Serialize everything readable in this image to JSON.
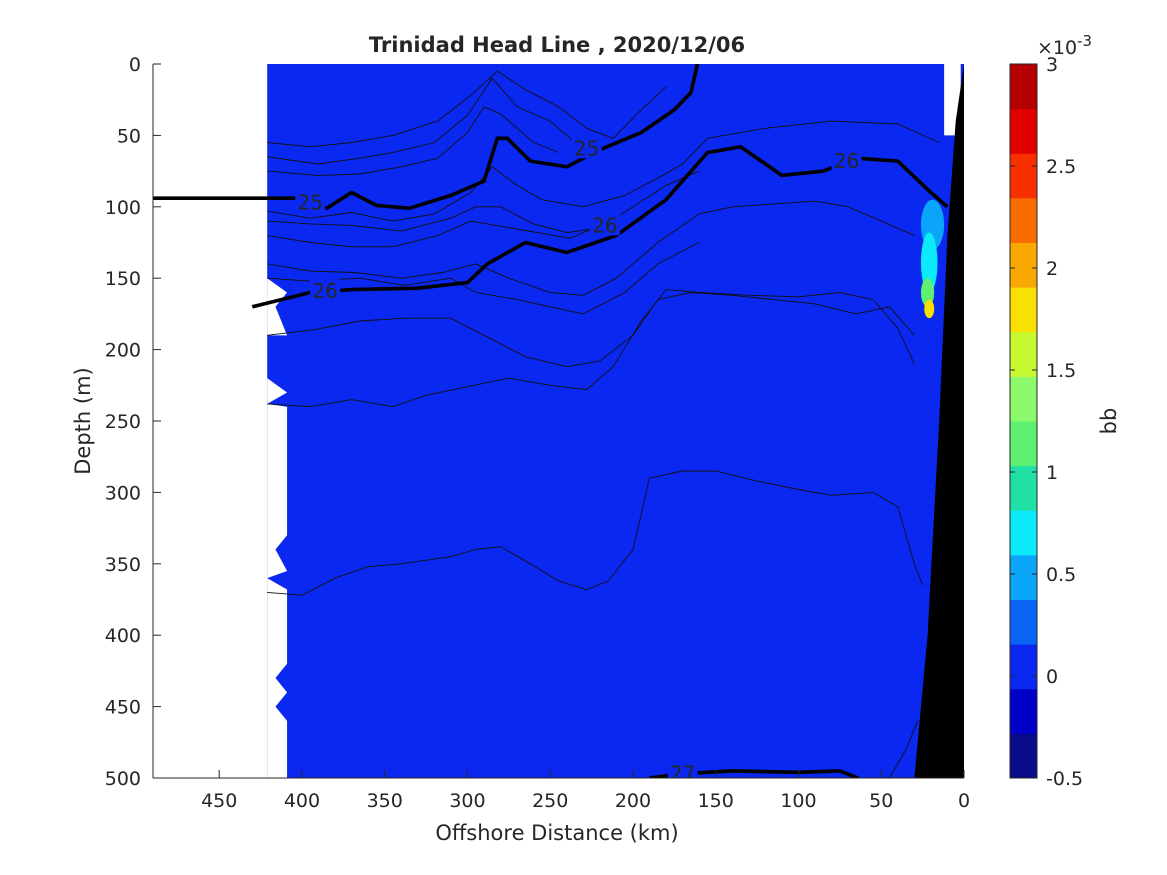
{
  "chart_data": {
    "type": "heatmap",
    "title": "Trinidad Head Line , 2020/12/06",
    "xlabel": "Offshore Distance (km)",
    "ylabel": "Depth (m)",
    "xlim": [
      490,
      0
    ],
    "ylim": [
      0,
      500
    ],
    "x_reversed": true,
    "y_reversed": true,
    "xticks": [
      "450",
      "400",
      "350",
      "300",
      "250",
      "200",
      "150",
      "100",
      "50",
      "0"
    ],
    "yticks": [
      "0",
      "50",
      "100",
      "150",
      "200",
      "250",
      "300",
      "350",
      "400",
      "450",
      "500"
    ],
    "colorbar": {
      "label": "bb",
      "exponent": "×10",
      "exponent_power": "-3",
      "range": [
        -0.5,
        3
      ],
      "tick_values": [
        -0.5,
        0,
        0.5,
        1,
        1.5,
        2,
        2.5,
        3
      ],
      "tick_labels": [
        "-0.5",
        "0",
        "0.5",
        "1",
        "1.5",
        "2",
        "2.5",
        "3"
      ],
      "colors": [
        "#0a0a8c",
        "#0000c8",
        "#0a28f0",
        "#0a64f5",
        "#0aa4f8",
        "#0aeaf8",
        "#20e0a8",
        "#5ef070",
        "#8cf86c",
        "#c8f830",
        "#f8e000",
        "#f8a800",
        "#f86c00",
        "#f83000",
        "#e00000",
        "#b40000"
      ]
    },
    "background_level": 0.1,
    "data_extent_x_km": [
      421,
      0
    ],
    "isopycnal_labels": [
      {
        "label": "25",
        "x": 395,
        "y": 97
      },
      {
        "label": "25",
        "x": 228,
        "y": 59
      },
      {
        "label": "26",
        "x": 386,
        "y": 159
      },
      {
        "label": "26",
        "x": 217,
        "y": 113
      },
      {
        "label": "26",
        "x": 71,
        "y": 68
      },
      {
        "label": "27",
        "x": 170,
        "y": 497
      }
    ],
    "bold_contours": [
      {
        "sigma": "25",
        "points": [
          [
            490,
            94
          ],
          [
            402,
            94
          ],
          [
            385,
            101
          ],
          [
            370,
            90
          ],
          [
            355,
            99
          ],
          [
            335,
            101
          ],
          [
            310,
            92
          ],
          [
            290,
            82
          ],
          [
            282,
            52
          ],
          [
            276,
            52
          ],
          [
            262,
            68
          ],
          [
            240,
            72
          ],
          [
            220,
            60
          ],
          [
            195,
            48
          ],
          [
            175,
            32
          ],
          [
            165,
            20
          ],
          [
            161,
            0
          ]
        ]
      },
      {
        "sigma": "26",
        "points": [
          [
            430,
            170
          ],
          [
            395,
            160
          ],
          [
            370,
            158
          ],
          [
            330,
            157
          ],
          [
            300,
            153
          ],
          [
            288,
            140
          ],
          [
            265,
            125
          ],
          [
            240,
            132
          ],
          [
            210,
            120
          ],
          [
            180,
            95
          ],
          [
            155,
            62
          ],
          [
            135,
            58
          ],
          [
            110,
            78
          ],
          [
            85,
            75
          ],
          [
            65,
            66
          ],
          [
            40,
            68
          ],
          [
            20,
            90
          ],
          [
            10,
            100
          ]
        ]
      },
      {
        "sigma": "27",
        "points": [
          [
            190,
            500
          ],
          [
            170,
            497
          ],
          [
            140,
            495
          ],
          [
            100,
            496
          ],
          [
            75,
            495
          ],
          [
            64,
            500
          ]
        ]
      }
    ],
    "thin_contours": [
      [
        [
          421,
          55
        ],
        [
          395,
          58
        ],
        [
          370,
          55
        ],
        [
          345,
          50
        ],
        [
          318,
          40
        ],
        [
          298,
          22
        ],
        [
          282,
          5
        ],
        [
          265,
          18
        ],
        [
          245,
          30
        ],
        [
          228,
          45
        ],
        [
          212,
          52
        ],
        [
          195,
          32
        ],
        [
          180,
          16
        ]
      ],
      [
        [
          421,
          65
        ],
        [
          390,
          70
        ],
        [
          365,
          66
        ],
        [
          345,
          62
        ],
        [
          320,
          55
        ],
        [
          300,
          36
        ],
        [
          285,
          10
        ],
        [
          270,
          30
        ],
        [
          250,
          40
        ],
        [
          235,
          55
        ]
      ],
      [
        [
          421,
          75
        ],
        [
          390,
          78
        ],
        [
          365,
          77
        ],
        [
          340,
          72
        ],
        [
          318,
          66
        ],
        [
          300,
          48
        ],
        [
          290,
          30
        ],
        [
          280,
          35
        ],
        [
          260,
          55
        ],
        [
          245,
          62
        ]
      ],
      [
        [
          421,
          103
        ],
        [
          395,
          108
        ],
        [
          370,
          104
        ],
        [
          345,
          110
        ],
        [
          320,
          105
        ],
        [
          298,
          90
        ],
        [
          285,
          72
        ],
        [
          270,
          85
        ],
        [
          255,
          95
        ],
        [
          230,
          100
        ],
        [
          205,
          92
        ],
        [
          185,
          80
        ],
        [
          170,
          70
        ],
        [
          155,
          52
        ],
        [
          120,
          45
        ],
        [
          80,
          40
        ],
        [
          40,
          42
        ],
        [
          15,
          55
        ]
      ],
      [
        [
          421,
          110
        ],
        [
          395,
          112
        ],
        [
          370,
          113
        ],
        [
          340,
          117
        ],
        [
          310,
          108
        ],
        [
          295,
          100
        ],
        [
          280,
          100
        ],
        [
          260,
          112
        ],
        [
          240,
          118
        ],
        [
          220,
          115
        ],
        [
          200,
          100
        ],
        [
          180,
          85
        ],
        [
          160,
          75
        ]
      ],
      [
        [
          421,
          120
        ],
        [
          395,
          125
        ],
        [
          370,
          128
        ],
        [
          345,
          128
        ],
        [
          318,
          120
        ],
        [
          298,
          110
        ],
        [
          278,
          114
        ],
        [
          258,
          118
        ],
        [
          238,
          122
        ],
        [
          214,
          110
        ]
      ],
      [
        [
          421,
          140
        ],
        [
          395,
          145
        ],
        [
          368,
          146
        ],
        [
          340,
          150
        ],
        [
          315,
          146
        ],
        [
          295,
          140
        ],
        [
          275,
          150
        ],
        [
          250,
          160
        ],
        [
          230,
          162
        ],
        [
          210,
          150
        ],
        [
          185,
          125
        ],
        [
          160,
          105
        ],
        [
          140,
          100
        ],
        [
          115,
          98
        ],
        [
          90,
          96
        ],
        [
          70,
          100
        ],
        [
          50,
          110
        ],
        [
          30,
          120
        ]
      ],
      [
        [
          421,
          150
        ],
        [
          395,
          152
        ],
        [
          365,
          150
        ],
        [
          338,
          155
        ],
        [
          310,
          150
        ],
        [
          295,
          160
        ],
        [
          270,
          165
        ],
        [
          250,
          170
        ],
        [
          230,
          175
        ],
        [
          205,
          160
        ],
        [
          185,
          140
        ],
        [
          160,
          125
        ]
      ],
      [
        [
          421,
          190
        ],
        [
          392,
          186
        ],
        [
          365,
          180
        ],
        [
          338,
          178
        ],
        [
          310,
          178
        ],
        [
          290,
          190
        ],
        [
          265,
          205
        ],
        [
          240,
          212
        ],
        [
          220,
          208
        ],
        [
          200,
          190
        ],
        [
          185,
          165
        ],
        [
          165,
          160
        ],
        [
          140,
          162
        ],
        [
          115,
          165
        ],
        [
          90,
          168
        ],
        [
          65,
          175
        ],
        [
          45,
          170
        ],
        [
          30,
          190
        ]
      ],
      [
        [
          421,
          238
        ],
        [
          395,
          240
        ],
        [
          370,
          235
        ],
        [
          345,
          240
        ],
        [
          325,
          232
        ],
        [
          300,
          226
        ],
        [
          275,
          220
        ],
        [
          250,
          225
        ],
        [
          228,
          228
        ],
        [
          212,
          212
        ],
        [
          195,
          180
        ],
        [
          180,
          158
        ],
        [
          160,
          160
        ],
        [
          130,
          162
        ],
        [
          100,
          163
        ],
        [
          75,
          160
        ],
        [
          55,
          165
        ],
        [
          40,
          185
        ],
        [
          30,
          210
        ]
      ],
      [
        [
          421,
          370
        ],
        [
          400,
          372
        ],
        [
          380,
          360
        ],
        [
          360,
          352
        ],
        [
          340,
          350
        ],
        [
          310,
          345
        ],
        [
          295,
          340
        ],
        [
          280,
          338
        ],
        [
          262,
          350
        ],
        [
          245,
          362
        ],
        [
          228,
          368
        ],
        [
          215,
          362
        ],
        [
          200,
          340
        ],
        [
          190,
          290
        ],
        [
          170,
          285
        ],
        [
          150,
          285
        ],
        [
          125,
          292
        ],
        [
          100,
          298
        ],
        [
          80,
          302
        ],
        [
          55,
          300
        ],
        [
          40,
          310
        ],
        [
          30,
          350
        ],
        [
          25,
          365
        ]
      ],
      [
        [
          45,
          500
        ],
        [
          35,
          480
        ],
        [
          28,
          460
        ]
      ]
    ],
    "patches": [
      {
        "level": -0.05,
        "x": [
          335,
          365
        ],
        "y": [
          352,
          362
        ]
      },
      {
        "level": -0.05,
        "x": [
          310,
          330
        ],
        "y": [
          352,
          362
        ]
      },
      {
        "level": -0.05,
        "x": [
          310,
          365
        ],
        "y": [
          374,
          385
        ]
      },
      {
        "level": -0.05,
        "x": [
          312,
          370
        ],
        "y": [
          422,
          440
        ]
      },
      {
        "level": -0.05,
        "x": [
          310,
          333
        ],
        "y": [
          423,
          436
        ]
      },
      {
        "level": -0.05,
        "x": [
          315,
          365
        ],
        "y": [
          484,
          494
        ]
      },
      {
        "level": -0.05,
        "x": [
          25,
          45
        ],
        "y": [
          155,
          185
        ]
      },
      {
        "level": -0.05,
        "x": [
          20,
          35
        ],
        "y": [
          290,
          305
        ]
      },
      {
        "level": 0.45,
        "x": [
          12,
          26
        ],
        "y": [
          95,
          130
        ]
      },
      {
        "level": 0.7,
        "x": [
          16,
          26
        ],
        "y": [
          118,
          160
        ]
      },
      {
        "level": 1.2,
        "x": [
          18,
          26
        ],
        "y": [
          150,
          170
        ]
      },
      {
        "level": 1.7,
        "x": [
          18,
          24
        ],
        "y": [
          165,
          178
        ]
      }
    ]
  }
}
